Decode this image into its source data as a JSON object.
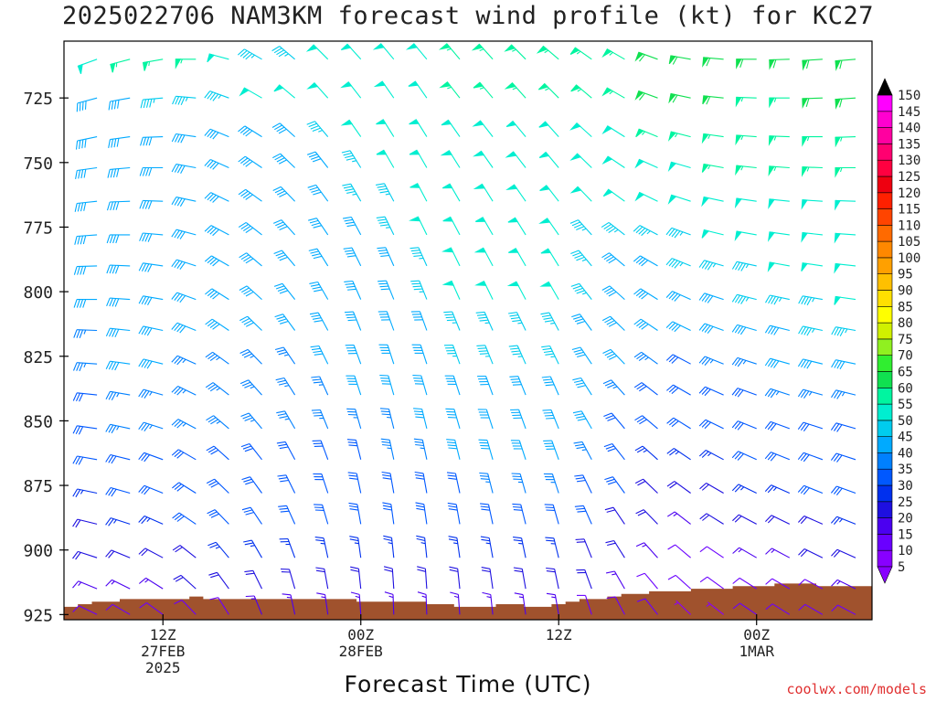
{
  "title": "2025022706 NAM3KM forecast wind profile (kt) for KC27",
  "xlabel": "Forecast Time (UTC)",
  "credit": "coolwx.com/models",
  "chart_data": {
    "type": "wind_barb_time_height",
    "station": "KC27",
    "model": "NAM3KM",
    "init": "2025022706",
    "units": "kt",
    "y_axis": {
      "label": "pressure (hPa)",
      "ticks": [
        725,
        750,
        775,
        800,
        825,
        850,
        875,
        900,
        925
      ],
      "range": [
        927,
        703
      ],
      "inverted": true
    },
    "x_axis": {
      "range_hours": [
        0,
        49
      ],
      "ticks": [
        {
          "hour": 6,
          "lines": [
            "12Z",
            "27FEB",
            "2025"
          ]
        },
        {
          "hour": 18,
          "lines": [
            "00Z",
            "28FEB"
          ]
        },
        {
          "hour": 30,
          "lines": [
            "12Z"
          ]
        },
        {
          "hour": 42,
          "lines": [
            "00Z",
            "1MAR"
          ]
        },
        {
          "hour": 54,
          "lines": [
            "12Z"
          ]
        }
      ]
    },
    "levels_hpa": [
      710,
      725,
      740,
      752,
      765,
      778,
      790,
      803,
      815,
      828,
      840,
      853,
      865,
      878,
      890,
      903,
      915,
      925
    ],
    "times_hours": [
      0,
      2,
      4,
      6,
      8,
      10,
      12,
      14,
      16,
      18,
      20,
      22,
      24,
      26,
      28,
      30,
      32,
      34,
      36,
      38,
      40,
      42,
      44,
      46,
      48,
      50,
      52,
      54,
      56,
      58
    ],
    "speed_kt": [
      [
        38,
        50,
        55,
        55,
        53,
        50,
        45,
        45,
        48,
        50,
        50,
        52,
        53,
        55,
        56,
        55,
        54,
        55,
        58,
        60,
        60,
        60,
        60,
        62,
        62,
        63,
        63,
        62,
        62,
        60
      ],
      [
        35,
        38,
        42,
        45,
        45,
        45,
        48,
        48,
        50,
        52,
        52,
        52,
        55,
        55,
        56,
        55,
        55,
        56,
        58,
        58,
        58,
        57,
        57,
        58,
        58,
        58,
        58,
        58,
        56,
        55
      ],
      [
        35,
        38,
        40,
        42,
        42,
        42,
        42,
        42,
        45,
        48,
        48,
        50,
        52,
        52,
        52,
        50,
        50,
        52,
        53,
        55,
        55,
        55,
        55,
        55,
        56,
        56,
        56,
        55,
        55,
        52
      ],
      [
        35,
        38,
        40,
        42,
        40,
        38,
        38,
        40,
        42,
        45,
        48,
        50,
        52,
        52,
        52,
        50,
        50,
        50,
        50,
        52,
        53,
        55,
        55,
        55,
        55,
        55,
        55,
        55,
        53,
        50
      ],
      [
        35,
        38,
        40,
        42,
        40,
        40,
        40,
        40,
        42,
        45,
        47,
        48,
        50,
        50,
        50,
        48,
        48,
        48,
        50,
        50,
        50,
        52,
        52,
        52,
        52,
        52,
        53,
        52,
        52,
        48
      ],
      [
        35,
        38,
        40,
        42,
        40,
        40,
        38,
        38,
        40,
        42,
        45,
        48,
        50,
        50,
        50,
        48,
        45,
        45,
        45,
        47,
        48,
        50,
        50,
        50,
        50,
        50,
        52,
        50,
        50,
        48
      ],
      [
        35,
        38,
        40,
        42,
        40,
        40,
        38,
        38,
        38,
        40,
        42,
        45,
        48,
        50,
        50,
        48,
        45,
        42,
        42,
        45,
        45,
        47,
        48,
        48,
        50,
        50,
        50,
        50,
        48,
        48
      ],
      [
        35,
        38,
        40,
        40,
        40,
        40,
        38,
        38,
        38,
        40,
        42,
        45,
        48,
        48,
        48,
        48,
        45,
        42,
        40,
        40,
        42,
        45,
        45,
        47,
        48,
        48,
        50,
        50,
        48,
        47
      ],
      [
        32,
        35,
        38,
        40,
        38,
        38,
        38,
        38,
        38,
        38,
        40,
        42,
        45,
        47,
        47,
        45,
        42,
        40,
        38,
        38,
        40,
        42,
        42,
        43,
        45,
        45,
        45,
        45,
        45,
        45
      ],
      [
        30,
        35,
        38,
        38,
        35,
        35,
        35,
        35,
        38,
        38,
        40,
        42,
        43,
        45,
        45,
        45,
        40,
        38,
        35,
        32,
        35,
        35,
        38,
        40,
        40,
        42,
        42,
        43,
        42,
        42
      ],
      [
        30,
        32,
        35,
        35,
        35,
        35,
        35,
        35,
        35,
        38,
        38,
        40,
        40,
        42,
        42,
        42,
        40,
        35,
        32,
        30,
        30,
        32,
        35,
        35,
        35,
        38,
        38,
        38,
        40,
        40
      ],
      [
        28,
        32,
        35,
        35,
        35,
        35,
        35,
        35,
        35,
        35,
        35,
        38,
        40,
        40,
        40,
        40,
        38,
        32,
        30,
        28,
        28,
        28,
        30,
        32,
        32,
        35,
        35,
        35,
        38,
        38
      ],
      [
        25,
        30,
        32,
        32,
        32,
        32,
        32,
        32,
        32,
        32,
        35,
        35,
        38,
        38,
        38,
        38,
        35,
        30,
        25,
        25,
        25,
        28,
        28,
        30,
        30,
        32,
        32,
        32,
        35,
        35
      ],
      [
        22,
        25,
        28,
        28,
        30,
        30,
        30,
        30,
        30,
        30,
        30,
        32,
        32,
        35,
        35,
        35,
        32,
        28,
        22,
        20,
        22,
        25,
        25,
        28,
        28,
        28,
        30,
        30,
        30,
        30
      ],
      [
        18,
        22,
        25,
        25,
        28,
        28,
        28,
        28,
        28,
        28,
        28,
        28,
        30,
        30,
        32,
        30,
        28,
        22,
        18,
        15,
        18,
        20,
        22,
        22,
        25,
        25,
        25,
        25,
        25,
        25
      ],
      [
        15,
        18,
        20,
        20,
        22,
        25,
        25,
        25,
        25,
        25,
        25,
        25,
        25,
        25,
        25,
        25,
        22,
        18,
        15,
        10,
        12,
        15,
        15,
        18,
        18,
        20,
        20,
        20,
        20,
        20
      ],
      [
        12,
        15,
        15,
        15,
        18,
        20,
        20,
        20,
        20,
        20,
        20,
        20,
        20,
        20,
        20,
        20,
        18,
        15,
        12,
        8,
        8,
        10,
        12,
        12,
        15,
        15,
        15,
        15,
        15,
        15
      ],
      [
        8,
        10,
        10,
        10,
        12,
        12,
        15,
        15,
        15,
        15,
        15,
        15,
        15,
        15,
        15,
        15,
        12,
        10,
        8,
        6,
        6,
        8,
        8,
        10,
        10,
        10,
        10,
        10,
        10,
        10
      ]
    ],
    "direction_deg": [
      [
        245,
        250,
        255,
        260,
        270,
        285,
        300,
        310,
        315,
        318,
        320,
        320,
        320,
        318,
        315,
        310,
        305,
        300,
        290,
        280,
        275,
        270,
        268,
        266,
        265,
        262,
        262,
        260,
        260,
        260
      ],
      [
        250,
        255,
        260,
        265,
        275,
        290,
        300,
        310,
        318,
        322,
        325,
        325,
        322,
        320,
        318,
        315,
        310,
        300,
        290,
        282,
        276,
        272,
        270,
        268,
        266,
        265,
        264,
        262,
        262,
        262
      ],
      [
        255,
        258,
        262,
        268,
        278,
        292,
        302,
        312,
        320,
        325,
        328,
        328,
        325,
        322,
        320,
        318,
        312,
        302,
        292,
        284,
        278,
        274,
        272,
        270,
        268,
        267,
        266,
        265,
        265,
        265
      ],
      [
        258,
        262,
        265,
        270,
        280,
        294,
        304,
        314,
        322,
        328,
        330,
        330,
        328,
        325,
        322,
        320,
        314,
        304,
        294,
        286,
        280,
        276,
        274,
        272,
        270,
        269,
        268,
        267,
        267,
        267
      ],
      [
        260,
        264,
        268,
        272,
        282,
        296,
        306,
        316,
        324,
        330,
        332,
        332,
        330,
        328,
        325,
        322,
        316,
        306,
        296,
        288,
        282,
        278,
        276,
        274,
        272,
        271,
        270,
        269,
        269,
        269
      ],
      [
        262,
        266,
        270,
        275,
        285,
        298,
        308,
        318,
        326,
        332,
        334,
        334,
        332,
        330,
        328,
        325,
        318,
        308,
        298,
        290,
        284,
        280,
        278,
        276,
        274,
        273,
        272,
        271,
        271,
        271
      ],
      [
        264,
        268,
        272,
        278,
        288,
        300,
        310,
        320,
        328,
        334,
        336,
        336,
        334,
        332,
        330,
        328,
        320,
        310,
        300,
        292,
        286,
        282,
        280,
        278,
        276,
        275,
        274,
        273,
        273,
        273
      ],
      [
        266,
        270,
        274,
        280,
        290,
        302,
        312,
        322,
        330,
        336,
        338,
        338,
        336,
        334,
        332,
        330,
        322,
        312,
        302,
        294,
        288,
        284,
        282,
        280,
        278,
        277,
        276,
        275,
        275,
        275
      ],
      [
        268,
        272,
        276,
        282,
        292,
        304,
        314,
        324,
        332,
        338,
        340,
        340,
        338,
        336,
        334,
        332,
        324,
        314,
        304,
        296,
        290,
        286,
        284,
        282,
        280,
        279,
        278,
        277,
        277,
        277
      ],
      [
        270,
        274,
        278,
        284,
        294,
        306,
        316,
        326,
        334,
        340,
        342,
        342,
        340,
        338,
        336,
        334,
        326,
        316,
        306,
        298,
        292,
        288,
        286,
        284,
        282,
        281,
        280,
        279,
        279,
        279
      ],
      [
        272,
        276,
        280,
        286,
        296,
        308,
        318,
        328,
        336,
        342,
        344,
        344,
        342,
        340,
        338,
        336,
        328,
        318,
        308,
        300,
        294,
        290,
        288,
        286,
        284,
        283,
        282,
        281,
        281,
        281
      ],
      [
        274,
        278,
        282,
        288,
        298,
        310,
        320,
        330,
        338,
        344,
        346,
        346,
        344,
        342,
        340,
        338,
        330,
        320,
        310,
        302,
        296,
        292,
        290,
        288,
        286,
        285,
        284,
        283,
        283,
        283
      ],
      [
        276,
        280,
        284,
        290,
        300,
        312,
        322,
        332,
        340,
        346,
        348,
        348,
        346,
        344,
        342,
        340,
        332,
        322,
        312,
        304,
        298,
        294,
        292,
        290,
        288,
        287,
        286,
        285,
        285,
        285
      ],
      [
        278,
        282,
        286,
        292,
        302,
        314,
        324,
        334,
        342,
        348,
        350,
        350,
        348,
        346,
        344,
        342,
        334,
        324,
        314,
        306,
        300,
        296,
        294,
        292,
        290,
        289,
        288,
        287,
        287,
        287
      ],
      [
        280,
        284,
        288,
        294,
        304,
        316,
        326,
        336,
        344,
        350,
        352,
        352,
        350,
        348,
        346,
        344,
        336,
        326,
        316,
        308,
        302,
        298,
        296,
        294,
        292,
        291,
        290,
        289,
        289,
        289
      ],
      [
        285,
        288,
        292,
        298,
        308,
        320,
        330,
        340,
        348,
        352,
        354,
        354,
        352,
        350,
        348,
        346,
        338,
        328,
        318,
        310,
        304,
        300,
        298,
        296,
        294,
        293,
        292,
        291,
        291,
        291
      ],
      [
        290,
        292,
        296,
        302,
        312,
        324,
        334,
        344,
        350,
        354,
        356,
        356,
        354,
        352,
        350,
        348,
        340,
        330,
        320,
        312,
        306,
        302,
        300,
        298,
        296,
        295,
        294,
        293,
        293,
        293
      ],
      [
        295,
        296,
        300,
        306,
        316,
        328,
        338,
        348,
        352,
        356,
        358,
        358,
        356,
        354,
        352,
        350,
        342,
        332,
        322,
        314,
        308,
        304,
        302,
        300,
        298,
        297,
        296,
        295,
        295,
        295
      ]
    ],
    "surface_pressure_hpa": [
      922,
      921,
      920,
      920,
      919,
      919,
      919,
      919,
      919,
      918,
      919,
      919,
      919,
      919,
      919,
      919,
      919,
      919,
      919,
      919,
      919,
      920,
      920,
      920,
      920,
      920,
      921,
      921,
      922,
      922,
      922,
      921,
      921,
      922,
      922,
      921,
      920,
      919,
      919,
      918,
      917,
      917,
      916,
      916,
      916,
      915,
      915,
      915,
      914,
      914,
      914,
      913,
      913,
      913,
      914,
      914,
      914,
      914
    ],
    "colorbar": {
      "levels": [
        5,
        10,
        15,
        20,
        25,
        30,
        35,
        40,
        45,
        50,
        55,
        60,
        65,
        70,
        75,
        80,
        85,
        90,
        95,
        100,
        105,
        110,
        115,
        120,
        125,
        130,
        135,
        140,
        145,
        150
      ],
      "colors": [
        "#8800ff",
        "#6a00ff",
        "#4b00f0",
        "#1e10e0",
        "#0030ee",
        "#0058ff",
        "#0080ff",
        "#00aaff",
        "#00ccee",
        "#00eed0",
        "#00f5a0",
        "#10e050",
        "#30ee30",
        "#90f020",
        "#d0f000",
        "#ffff00",
        "#ffe000",
        "#ffc000",
        "#ffa000",
        "#ff8800",
        "#ff6a00",
        "#ff4400",
        "#ff2000",
        "#ee0010",
        "#ff0040",
        "#ff0070",
        "#ff00a0",
        "#ff00d0",
        "#ff00ff",
        "#000000"
      ]
    }
  }
}
